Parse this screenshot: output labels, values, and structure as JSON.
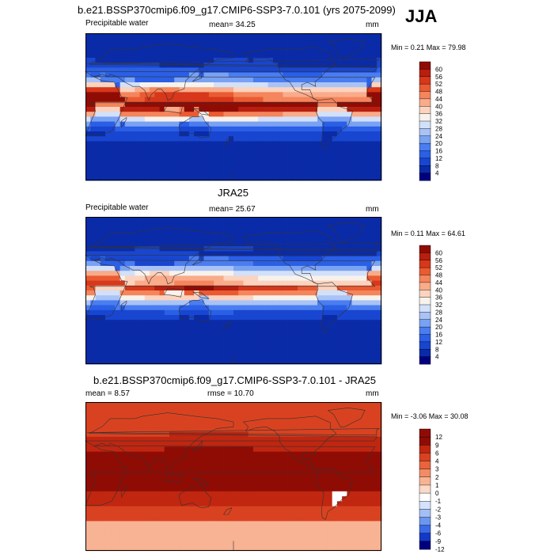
{
  "season": "JJA",
  "colors": {
    "seq": [
      "#00007f",
      "#0a2ba8",
      "#1846d0",
      "#2a5fe6",
      "#4a7df0",
      "#7aa2f3",
      "#a9c3f6",
      "#d2e0fa",
      "#f7f2ec",
      "#fbd3bf",
      "#f9ab8a",
      "#f4855c",
      "#ea5b32",
      "#d7371a",
      "#b81f0e",
      "#8f0c05"
    ],
    "diff": [
      "#00007f",
      "#1438c8",
      "#3a6ae8",
      "#6c97f0",
      "#a4bff5",
      "#d4e2fb",
      "#ffffff",
      "#fbd9c6",
      "#f7b394",
      "#f28c66",
      "#e8643d",
      "#d94220",
      "#c02610",
      "#8f0c05"
    ]
  },
  "chart_data": [
    {
      "type": "heatmap",
      "title": "b.e21.BSSP370cmip6.f09_g17.CMIP6-SSP3-7.0.101 (yrs 2075-2099)",
      "left_label": "Precipitable water",
      "mean_text": "mean=  34.25",
      "unit": "mm",
      "minmax_text": "Min =   0.21 Max =  79.98",
      "colorbar_ticks": [
        "60",
        "56",
        "52",
        "48",
        "44",
        "40",
        "36",
        "32",
        "28",
        "24",
        "20",
        "16",
        "12",
        "8",
        "4"
      ],
      "stats": {
        "mean": 34.25,
        "min": 0.21,
        "max": 79.98
      },
      "ylim": [
        -90,
        90
      ],
      "xlim": [
        0,
        360
      ]
    },
    {
      "type": "heatmap",
      "title": "JRA25",
      "left_label": "Precipitable water",
      "mean_text": "mean=  25.67",
      "unit": "mm",
      "minmax_text": "Min =   0.11 Max =  64.61",
      "colorbar_ticks": [
        "60",
        "56",
        "52",
        "48",
        "44",
        "40",
        "36",
        "32",
        "28",
        "24",
        "20",
        "16",
        "12",
        "8",
        "4"
      ],
      "stats": {
        "mean": 25.67,
        "min": 0.11,
        "max": 64.61
      },
      "ylim": [
        -90,
        90
      ],
      "xlim": [
        0,
        360
      ]
    },
    {
      "type": "heatmap",
      "title": "b.e21.BSSP370cmip6.f09_g17.CMIP6-SSP3-7.0.101 - JRA25",
      "mean_text": "mean =   8.57",
      "rmse_text": "rmse =  10.70",
      "unit": "mm",
      "minmax_text": "Min =  -3.06 Max =  30.08",
      "colorbar_ticks": [
        "12",
        "9",
        "6",
        "4",
        "3",
        "2",
        "1",
        "0",
        "-1",
        "-2",
        "-3",
        "-4",
        "-6",
        "-9",
        "-12"
      ],
      "stats": {
        "mean": 8.57,
        "rmse": 10.7,
        "min": -3.06,
        "max": 30.08
      },
      "ylim": [
        -90,
        90
      ],
      "xlim": [
        0,
        360
      ]
    }
  ]
}
